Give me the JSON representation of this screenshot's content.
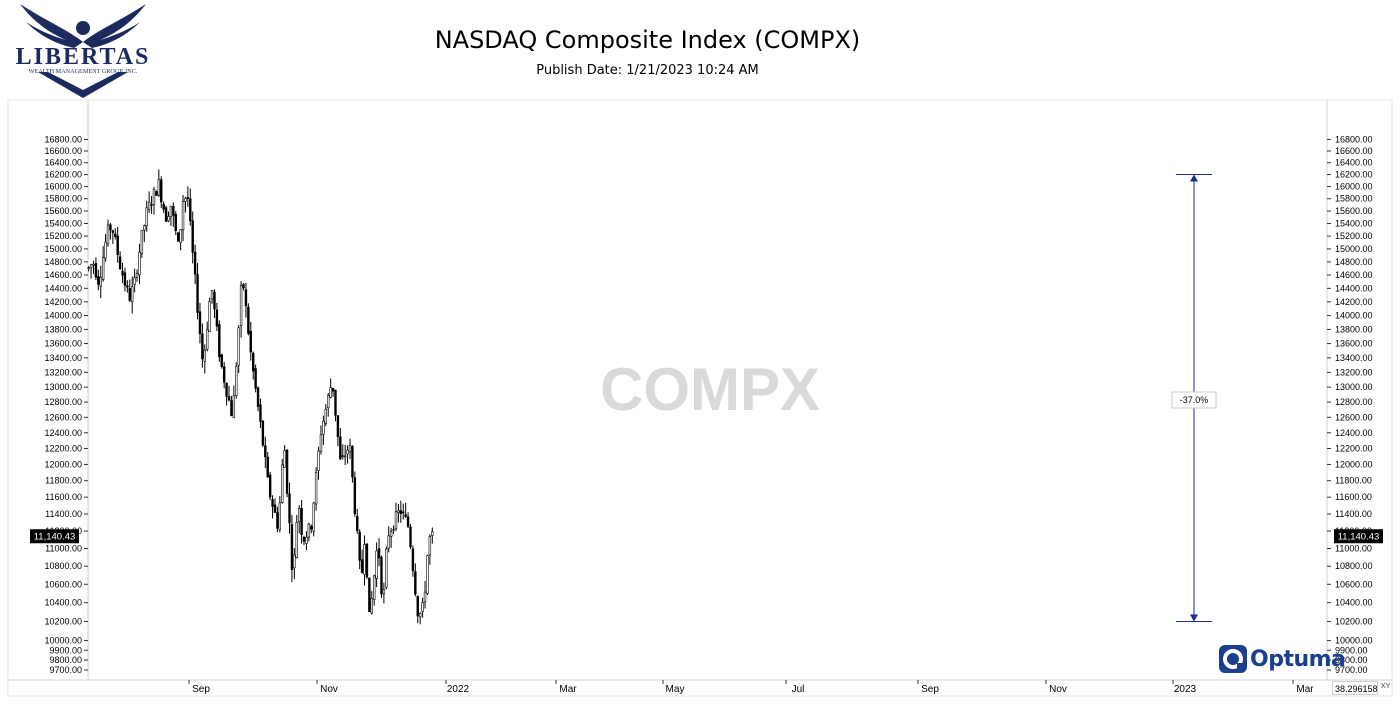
{
  "header": {
    "title": "NASDAQ Composite Index (COMPX)",
    "subtitle": "Publish Date: 1/21/2023 10:24 AM",
    "logo_text": "LIBERTAS",
    "logo_subtext": "WEALTH MANAGEMENT GROUP, INC."
  },
  "chart_data": {
    "type": "candlestick",
    "symbol": "COMPX",
    "watermark": "COMPX",
    "x_labels": [
      "Sep",
      "Nov",
      "2022",
      "Mar",
      "May",
      "Jul",
      "Sep",
      "Nov",
      "2023",
      "Mar"
    ],
    "y_ticks": [
      9700,
      9800,
      9900,
      10000,
      10200,
      10400,
      10600,
      10800,
      11000,
      11200,
      11400,
      11600,
      11800,
      12000,
      12200,
      12400,
      12600,
      12800,
      13000,
      13200,
      13400,
      13600,
      13800,
      14000,
      14200,
      14400,
      14600,
      14800,
      15000,
      15200,
      15400,
      15600,
      15800,
      16000,
      16200,
      16400,
      16600,
      16800
    ],
    "y_scale": "log",
    "last_value": "11,140.43",
    "trend_points": [
      [
        "2021-08-02",
        14700
      ],
      [
        "2021-08-09",
        14800
      ],
      [
        "2021-08-18",
        14500
      ],
      [
        "2021-08-31",
        15250
      ],
      [
        "2021-09-07",
        15370
      ],
      [
        "2021-09-20",
        14750
      ],
      [
        "2021-10-04",
        14250
      ],
      [
        "2021-10-12",
        14450
      ],
      [
        "2021-10-22",
        15100
      ],
      [
        "2021-11-01",
        15600
      ],
      [
        "2021-11-19",
        16050
      ],
      [
        "2021-11-30",
        15500
      ],
      [
        "2021-12-08",
        15700
      ],
      [
        "2021-12-20",
        15000
      ],
      [
        "2021-12-27",
        15800
      ],
      [
        "2022-01-03",
        15850
      ],
      [
        "2022-01-10",
        15000
      ],
      [
        "2022-01-27",
        13300
      ],
      [
        "2022-02-09",
        14450
      ],
      [
        "2022-02-23",
        13350
      ],
      [
        "2022-03-14",
        12600
      ],
      [
        "2022-03-29",
        14600
      ],
      [
        "2022-04-12",
        13400
      ],
      [
        "2022-04-28",
        12400
      ],
      [
        "2022-05-09",
        11700
      ],
      [
        "2022-05-24",
        11250
      ],
      [
        "2022-06-02",
        12300
      ],
      [
        "2022-06-16",
        10650
      ],
      [
        "2022-06-24",
        11600
      ],
      [
        "2022-07-01",
        11100
      ],
      [
        "2022-07-14",
        11250
      ],
      [
        "2022-07-29",
        12400
      ],
      [
        "2022-08-16",
        13100
      ],
      [
        "2022-08-29",
        12000
      ],
      [
        "2022-09-12",
        12250
      ],
      [
        "2022-09-30",
        10600
      ],
      [
        "2022-10-06",
        11200
      ],
      [
        "2022-10-13",
        10200
      ],
      [
        "2022-10-26",
        11100
      ],
      [
        "2022-11-03",
        10350
      ],
      [
        "2022-11-10",
        11150
      ],
      [
        "2022-11-30",
        11450
      ],
      [
        "2022-12-13",
        11250
      ],
      [
        "2022-12-28",
        10250
      ],
      [
        "2023-01-05",
        10350
      ],
      [
        "2023-01-13",
        11100
      ],
      [
        "2023-01-20",
        11140
      ]
    ],
    "measurement": {
      "from": 16200,
      "to": 10200,
      "label": "-37.0%"
    },
    "cursor_readout": "38.2961584"
  },
  "footer": {
    "brand": "Optuma",
    "xy_label": "XY"
  },
  "colors": {
    "candle": "#000000",
    "measure_line": "#1a2e8c",
    "watermark": "#d9d9d9",
    "brand": "#1b3f8f",
    "logo": "#1c2a5e"
  }
}
